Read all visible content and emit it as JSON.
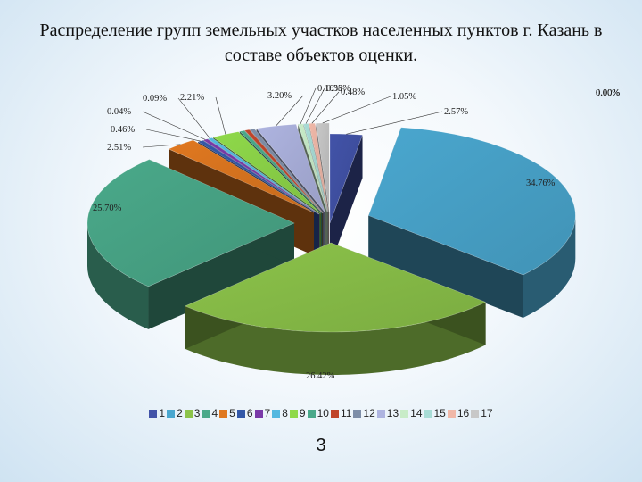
{
  "title": "Распределение групп земельных участков населенных пунктов г. Казань в составе объектов оценки.",
  "page_number": "3",
  "chart_data": {
    "type": "pie",
    "categories": [
      "1",
      "2",
      "3",
      "4",
      "5",
      "6",
      "7",
      "8",
      "9",
      "10",
      "11",
      "12",
      "13",
      "14",
      "15",
      "16",
      "17"
    ],
    "values": [
      2.57,
      34.76,
      26.42,
      25.7,
      2.51,
      0.46,
      0.04,
      0.09,
      2.21,
      0.0,
      0.0,
      0.0,
      3.2,
      0.16,
      0.33,
      0.48,
      1.05
    ],
    "labels": [
      "2.57%",
      "34.76%",
      "26.42%",
      "25.70%",
      "2.51%",
      "0.46%",
      "0.04%",
      "0.09%",
      "2.21%",
      "0.00%",
      "0.00%",
      "0.00%",
      "3.20%",
      "0.16%",
      "0.33%",
      "0.48%",
      "1.05%"
    ],
    "colors": [
      "#4253a8",
      "#4aa7cf",
      "#8cc34a",
      "#4aa98a",
      "#e07820",
      "#3358a8",
      "#7a3aa8",
      "#53b8e0",
      "#8fd94a",
      "#4aa98a",
      "#c0452a",
      "#7e8ea8",
      "#aeb4e0",
      "#c8ecc8",
      "#a8dcd6",
      "#f0b8a8",
      "#c8c8c8"
    ],
    "exploded": true,
    "legend_position": "bottom"
  }
}
